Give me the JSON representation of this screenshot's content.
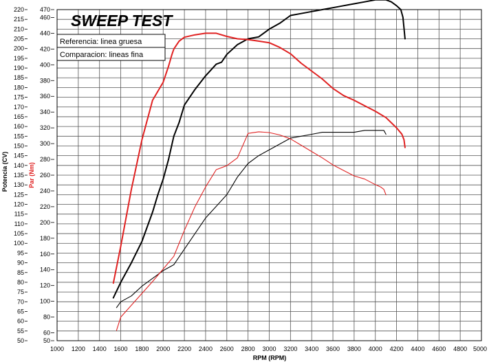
{
  "chart_data": {
    "type": "line",
    "title": "SWEEP TEST",
    "xlabel": "RPM (RPM)",
    "ylabel_left": "Potencia (CV)",
    "ylabel_right": "Par (Nm)",
    "xlim": [
      1000,
      5000
    ],
    "ylim_power": [
      50,
      220
    ],
    "ylim_torque": [
      50,
      470
    ],
    "x_ticks": [
      "1000",
      "1200",
      "1400",
      "1600",
      "1800",
      "2000",
      "2200",
      "2400",
      "2600",
      "2800",
      "3000",
      "3200",
      "3400",
      "3600",
      "3800",
      "4000",
      "4200",
      "4400",
      "4600",
      "4800",
      "5000"
    ],
    "y_power_ticks": [
      "50",
      "55",
      "60",
      "65",
      "70",
      "75",
      "80",
      "85",
      "90",
      "95",
      "100",
      "105",
      "110",
      "115",
      "120",
      "125",
      "130",
      "135",
      "140",
      "145",
      "150",
      "155",
      "160",
      "165",
      "170",
      "175",
      "180",
      "185",
      "190",
      "195",
      "200",
      "205",
      "210",
      "215",
      "220"
    ],
    "y_torque_ticks": [
      "50",
      "60",
      "80",
      "100",
      "120",
      "140",
      "160",
      "180",
      "200",
      "220",
      "240",
      "260",
      "280",
      "300",
      "320",
      "340",
      "360",
      "380",
      "400",
      "420",
      "440",
      "460",
      "470"
    ],
    "legend": {
      "reference": "Referencia: linea gruesa",
      "comparison": "Comparacion: lineas fina"
    },
    "colors": {
      "power": "#000000",
      "torque": "#e02020",
      "grid": "#555555"
    },
    "series": [
      {
        "name": "Potencia referencia",
        "axis": "power",
        "color": "#000000",
        "weight": "thick",
        "x": [
          1530,
          1600,
          1700,
          1800,
          1900,
          1950,
          2000,
          2050,
          2100,
          2150,
          2200,
          2250,
          2300,
          2400,
          2500,
          2550,
          2600,
          2700,
          2800,
          2900,
          3000,
          3100,
          3200,
          3300,
          3400,
          3500,
          3600,
          3700,
          3800,
          3900,
          4000,
          4100,
          4150,
          4200,
          4240,
          4260,
          4280
        ],
        "y": [
          72,
          80,
          90,
          101,
          116,
          125,
          133,
          143,
          155,
          162,
          171,
          175,
          179,
          186,
          192,
          193,
          197,
          202,
          205,
          206,
          210,
          213,
          217,
          218,
          219,
          220,
          221,
          222,
          223,
          224,
          225,
          225,
          224,
          222,
          220,
          216,
          205
        ]
      },
      {
        "name": "Par referencia",
        "axis": "torque",
        "color": "#e02020",
        "weight": "thick",
        "x": [
          1530,
          1600,
          1700,
          1800,
          1900,
          2000,
          2050,
          2080,
          2100,
          2150,
          2200,
          2300,
          2400,
          2500,
          2600,
          2700,
          2800,
          2900,
          3000,
          3100,
          3200,
          3300,
          3400,
          3500,
          3600,
          3700,
          3800,
          3900,
          4000,
          4100,
          4200,
          4250,
          4270,
          4280
        ],
        "y": [
          123,
          170,
          242,
          305,
          355,
          378,
          398,
          412,
          420,
          430,
          435,
          438,
          440,
          440,
          436,
          433,
          432,
          430,
          428,
          422,
          414,
          402,
          392,
          382,
          370,
          361,
          355,
          348,
          341,
          333,
          320,
          312,
          305,
          295
        ]
      },
      {
        "name": "Potencia comparacion",
        "axis": "power",
        "color": "#000000",
        "weight": "thin",
        "x": [
          1560,
          1600,
          1700,
          1800,
          1900,
          2000,
          2100,
          2200,
          2300,
          2400,
          2500,
          2600,
          2700,
          2800,
          2900,
          3000,
          3100,
          3200,
          3300,
          3400,
          3500,
          3600,
          3700,
          3800,
          3900,
          4000,
          4050,
          4080,
          4100
        ],
        "y": [
          67,
          70,
          73,
          78,
          82,
          86,
          89,
          97,
          105,
          113,
          119,
          125,
          134,
          141,
          145,
          148,
          151,
          154,
          155,
          156,
          157,
          157,
          157,
          157,
          158,
          158,
          158,
          158,
          156
        ]
      },
      {
        "name": "Par comparacion",
        "axis": "torque",
        "color": "#e02020",
        "weight": "thin",
        "x": [
          1560,
          1600,
          1700,
          1800,
          1900,
          2000,
          2100,
          2200,
          2300,
          2400,
          2500,
          2600,
          2700,
          2800,
          2900,
          3000,
          3100,
          3200,
          3300,
          3400,
          3500,
          3600,
          3700,
          3800,
          3900,
          4000,
          4050,
          4080,
          4100
        ],
        "y": [
          63,
          80,
          95,
          110,
          125,
          141,
          157,
          190,
          220,
          245,
          267,
          272,
          282,
          313,
          315,
          314,
          311,
          306,
          298,
          290,
          282,
          273,
          266,
          259,
          255,
          248,
          245,
          242,
          235
        ]
      }
    ]
  }
}
